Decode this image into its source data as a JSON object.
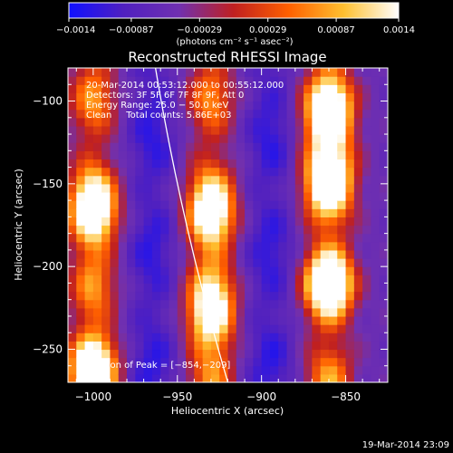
{
  "chart_data": {
    "type": "heatmap",
    "title": "Reconstructed RHESSI Image",
    "xlabel": "Heliocentric X (arcsec)",
    "ylabel": "Heliocentric Y (arcsec)",
    "xlim": [
      -1015,
      -825
    ],
    "ylim": [
      -270,
      -80
    ],
    "x_ticks": [
      -1000,
      -950,
      -900,
      -850
    ],
    "y_ticks": [
      -100,
      -150,
      -200,
      -250
    ],
    "x_tick_labels": [
      "−1000",
      "−950",
      "−900",
      "−850"
    ],
    "y_tick_labels": [
      "−100",
      "−150",
      "−200",
      "−250"
    ],
    "colorbar": {
      "ticks": [
        -0.0014,
        -0.00087,
        -0.00029,
        0.00029,
        0.00087,
        0.0014
      ],
      "tick_labels": [
        "−0.0014",
        "−0.00087",
        "−0.00029",
        "0.00029",
        "0.00087",
        "0.0014"
      ],
      "unit_label": "(photons cm⁻² s⁻¹ asec⁻²)",
      "colors": [
        "#1010ff",
        "#5020c0",
        "#7030b0",
        "#c02020",
        "#ff6000",
        "#ffc030",
        "#ffffff"
      ]
    },
    "annotation_lines": [
      "20‑Mar‑2014 00:53:12.000 to 00:55:12.000",
      "Detectors: 3F 5F 6F 7F 8F 9F, Att 0",
      "Energy Range: 25.0 − 50.0 keV",
      "Clean     Total counts: 5.86E+03"
    ],
    "peak_label": "Position of Peak = [−854,−209]",
    "peak_position": [
      -854,
      -209
    ],
    "ridges": [
      {
        "x": -1000,
        "y_peaks": [
          -168,
          -260
        ],
        "strength": 0.95
      },
      {
        "x": -930,
        "y_peaks": [
          -170,
          -230
        ],
        "strength": 0.9
      },
      {
        "x": -860,
        "y_peaks": [
          -110,
          -145,
          -209
        ],
        "strength": 1.0
      }
    ],
    "limb_x_at_y": [
      [
        -80,
        -963
      ],
      [
        -270,
        -920
      ]
    ],
    "timestamp": "19‑Mar‑2014 23:09"
  }
}
